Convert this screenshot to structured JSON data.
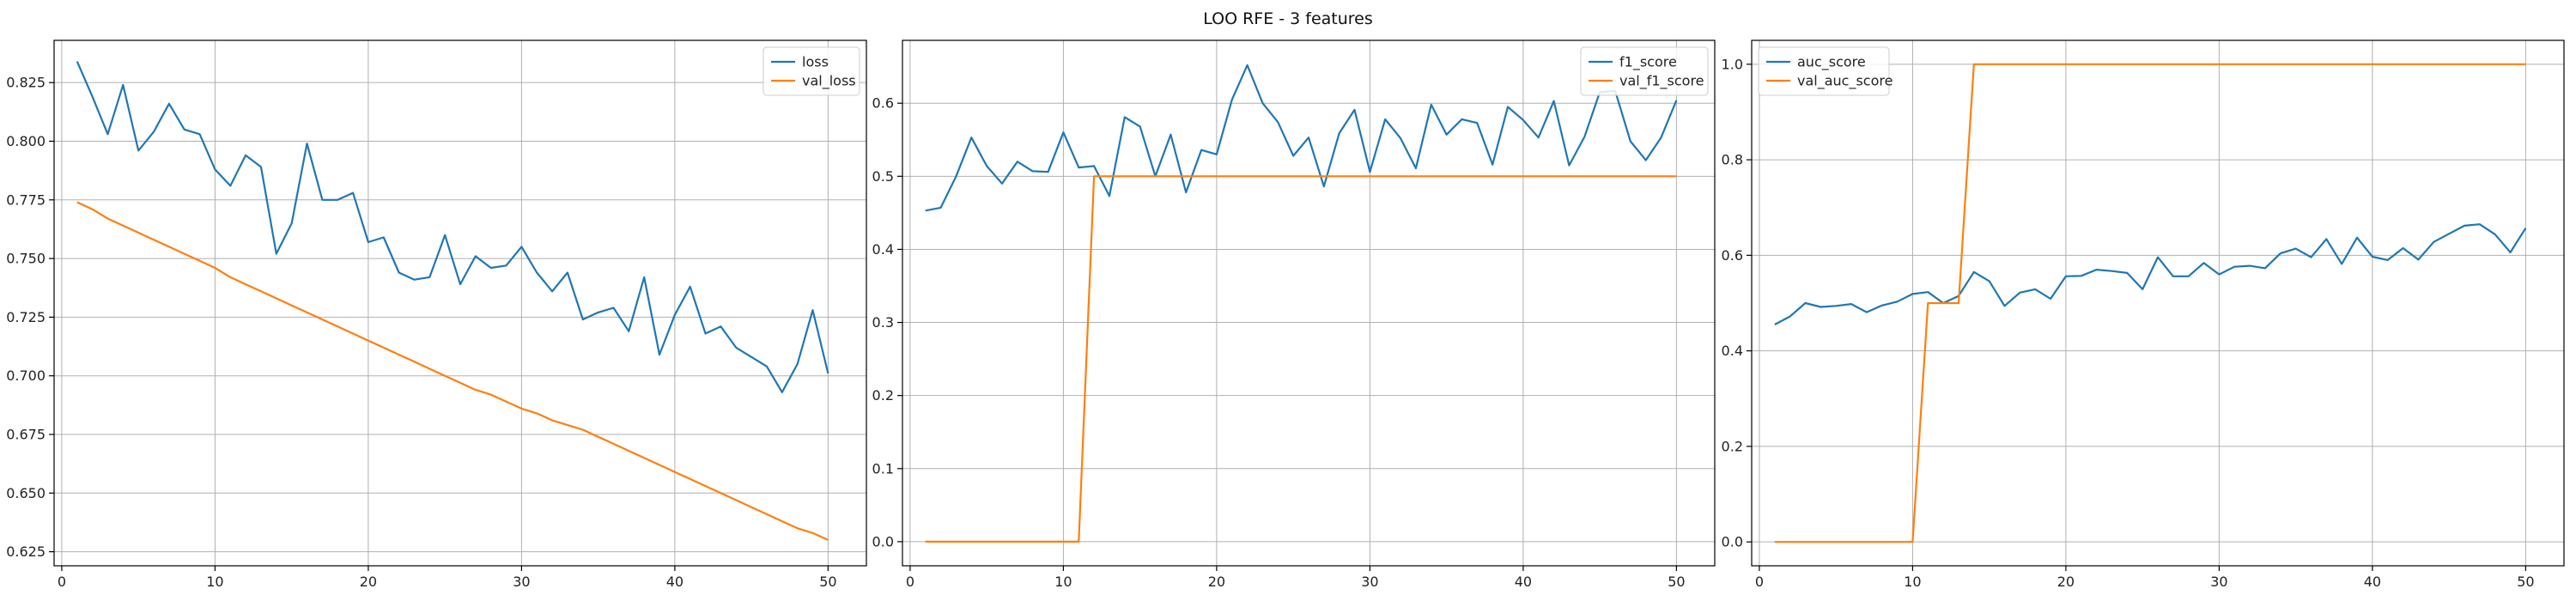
{
  "title": "LOO RFE - 3 features",
  "colors": {
    "series1": "#1f77b4",
    "series2": "#ff7f0e",
    "grid": "#b0b0b0",
    "axis": "#000000"
  },
  "chart_data": [
    {
      "type": "line",
      "grid": true,
      "legend_position": "top-right",
      "xlim": [
        -0.5,
        52.5
      ],
      "ylim": [
        0.619,
        0.843
      ],
      "xticks": [
        0,
        10,
        20,
        30,
        40,
        50
      ],
      "xtick_labels": [
        "0",
        "10",
        "20",
        "30",
        "40",
        "50"
      ],
      "yticks": [
        0.625,
        0.65,
        0.675,
        0.7,
        0.725,
        0.75,
        0.775,
        0.8,
        0.825
      ],
      "ytick_labels": [
        "0.625",
        "0.650",
        "0.675",
        "0.700",
        "0.725",
        "0.750",
        "0.775",
        "0.800",
        "0.825"
      ],
      "series": [
        {
          "name": "loss",
          "color": "#1f77b4",
          "x": [
            1,
            2,
            3,
            4,
            5,
            6,
            7,
            8,
            9,
            10,
            11,
            12,
            13,
            14,
            15,
            16,
            17,
            18,
            19,
            20,
            21,
            22,
            23,
            24,
            25,
            26,
            27,
            28,
            29,
            30,
            31,
            32,
            33,
            34,
            35,
            36,
            37,
            38,
            39,
            40,
            41,
            42,
            43,
            44,
            45,
            46,
            47,
            48,
            49,
            50
          ],
          "y": [
            0.834,
            0.819,
            0.803,
            0.824,
            0.796,
            0.804,
            0.816,
            0.805,
            0.803,
            0.788,
            0.781,
            0.794,
            0.789,
            0.752,
            0.765,
            0.799,
            0.775,
            0.775,
            0.778,
            0.757,
            0.759,
            0.744,
            0.741,
            0.742,
            0.76,
            0.739,
            0.751,
            0.746,
            0.747,
            0.755,
            0.744,
            0.736,
            0.744,
            0.724,
            0.727,
            0.729,
            0.719,
            0.742,
            0.709,
            0.726,
            0.738,
            0.718,
            0.721,
            0.712,
            0.708,
            0.704,
            0.693,
            0.705,
            0.728,
            0.701
          ]
        },
        {
          "name": "val_loss",
          "color": "#ff7f0e",
          "x": [
            1,
            2,
            3,
            4,
            5,
            6,
            7,
            8,
            9,
            10,
            11,
            12,
            13,
            14,
            15,
            16,
            17,
            18,
            19,
            20,
            21,
            22,
            23,
            24,
            25,
            26,
            27,
            28,
            29,
            30,
            31,
            32,
            33,
            34,
            35,
            36,
            37,
            38,
            39,
            40,
            41,
            42,
            43,
            44,
            45,
            46,
            47,
            48,
            49,
            50
          ],
          "y": [
            0.774,
            0.771,
            0.767,
            0.764,
            0.761,
            0.758,
            0.755,
            0.752,
            0.749,
            0.746,
            0.742,
            0.739,
            0.736,
            0.733,
            0.73,
            0.727,
            0.724,
            0.721,
            0.718,
            0.715,
            0.712,
            0.709,
            0.706,
            0.703,
            0.7,
            0.697,
            0.694,
            0.692,
            0.689,
            0.686,
            0.684,
            0.681,
            0.679,
            0.677,
            0.674,
            0.671,
            0.668,
            0.665,
            0.662,
            0.659,
            0.656,
            0.653,
            0.65,
            0.647,
            0.644,
            0.641,
            0.638,
            0.635,
            0.633,
            0.63
          ]
        }
      ]
    },
    {
      "type": "line",
      "grid": true,
      "legend_position": "top-right",
      "xlim": [
        -0.5,
        52.5
      ],
      "ylim": [
        -0.033,
        0.686
      ],
      "xticks": [
        0,
        10,
        20,
        30,
        40,
        50
      ],
      "xtick_labels": [
        "0",
        "10",
        "20",
        "30",
        "40",
        "50"
      ],
      "yticks": [
        0.0,
        0.1,
        0.2,
        0.3,
        0.4,
        0.5,
        0.6
      ],
      "ytick_labels": [
        "0.0",
        "0.1",
        "0.2",
        "0.3",
        "0.4",
        "0.5",
        "0.6"
      ],
      "series": [
        {
          "name": "f1_score",
          "color": "#1f77b4",
          "x": [
            1,
            2,
            3,
            4,
            5,
            6,
            7,
            8,
            9,
            10,
            11,
            12,
            13,
            14,
            15,
            16,
            17,
            18,
            19,
            20,
            21,
            22,
            23,
            24,
            25,
            26,
            27,
            28,
            29,
            30,
            31,
            32,
            33,
            34,
            35,
            36,
            37,
            38,
            39,
            40,
            41,
            42,
            43,
            44,
            45,
            46,
            47,
            48,
            49,
            50
          ],
          "y": [
            0.453,
            0.457,
            0.5,
            0.553,
            0.514,
            0.49,
            0.52,
            0.507,
            0.506,
            0.56,
            0.512,
            0.514,
            0.473,
            0.581,
            0.568,
            0.5,
            0.557,
            0.478,
            0.536,
            0.53,
            0.605,
            0.652,
            0.6,
            0.574,
            0.528,
            0.553,
            0.486,
            0.559,
            0.591,
            0.506,
            0.578,
            0.552,
            0.511,
            0.598,
            0.557,
            0.578,
            0.573,
            0.516,
            0.595,
            0.577,
            0.553,
            0.603,
            0.515,
            0.554,
            0.615,
            0.617,
            0.548,
            0.522,
            0.553,
            0.604
          ]
        },
        {
          "name": "val_f1_score",
          "color": "#ff7f0e",
          "x": [
            1,
            2,
            3,
            4,
            5,
            6,
            7,
            8,
            9,
            10,
            11,
            12,
            13,
            14,
            15,
            16,
            17,
            18,
            19,
            20,
            21,
            22,
            23,
            24,
            25,
            26,
            27,
            28,
            29,
            30,
            31,
            32,
            33,
            34,
            35,
            36,
            37,
            38,
            39,
            40,
            41,
            42,
            43,
            44,
            45,
            46,
            47,
            48,
            49,
            50
          ],
          "y": [
            0,
            0,
            0,
            0,
            0,
            0,
            0,
            0,
            0,
            0,
            0,
            0.5,
            0.5,
            0.5,
            0.5,
            0.5,
            0.5,
            0.5,
            0.5,
            0.5,
            0.5,
            0.5,
            0.5,
            0.5,
            0.5,
            0.5,
            0.5,
            0.5,
            0.5,
            0.5,
            0.5,
            0.5,
            0.5,
            0.5,
            0.5,
            0.5,
            0.5,
            0.5,
            0.5,
            0.5,
            0.5,
            0.5,
            0.5,
            0.5,
            0.5,
            0.5,
            0.5,
            0.5,
            0.5,
            0.5
          ]
        }
      ]
    },
    {
      "type": "line",
      "grid": true,
      "legend_position": "top-left",
      "xlim": [
        -0.5,
        52.5
      ],
      "ylim": [
        -0.05,
        1.05
      ],
      "xticks": [
        0,
        10,
        20,
        30,
        40,
        50
      ],
      "xtick_labels": [
        "0",
        "10",
        "20",
        "30",
        "40",
        "50"
      ],
      "yticks": [
        0.0,
        0.2,
        0.4,
        0.6,
        0.8,
        1.0
      ],
      "ytick_labels": [
        "0.0",
        "0.2",
        "0.4",
        "0.6",
        "0.8",
        "1.0"
      ],
      "series": [
        {
          "name": "auc_score",
          "color": "#1f77b4",
          "x": [
            1,
            2,
            3,
            4,
            5,
            6,
            7,
            8,
            9,
            10,
            11,
            12,
            13,
            14,
            15,
            16,
            17,
            18,
            19,
            20,
            21,
            22,
            23,
            24,
            25,
            26,
            27,
            28,
            29,
            30,
            31,
            32,
            33,
            34,
            35,
            36,
            37,
            38,
            39,
            40,
            41,
            42,
            43,
            44,
            45,
            46,
            47,
            48,
            49,
            50
          ],
          "y": [
            0.455,
            0.472,
            0.5,
            0.492,
            0.494,
            0.498,
            0.481,
            0.495,
            0.503,
            0.519,
            0.523,
            0.5,
            0.515,
            0.565,
            0.546,
            0.494,
            0.522,
            0.529,
            0.509,
            0.556,
            0.557,
            0.57,
            0.567,
            0.563,
            0.529,
            0.596,
            0.556,
            0.556,
            0.584,
            0.56,
            0.576,
            0.578,
            0.573,
            0.604,
            0.614,
            0.596,
            0.634,
            0.582,
            0.637,
            0.597,
            0.59,
            0.615,
            0.591,
            0.628,
            0.645,
            0.662,
            0.665,
            0.644,
            0.606,
            0.657
          ]
        },
        {
          "name": "val_auc_score",
          "color": "#ff7f0e",
          "x": [
            1,
            2,
            3,
            4,
            5,
            6,
            7,
            8,
            9,
            10,
            11,
            12,
            13,
            14,
            15,
            16,
            17,
            18,
            19,
            20,
            21,
            22,
            23,
            24,
            25,
            26,
            27,
            28,
            29,
            30,
            31,
            32,
            33,
            34,
            35,
            36,
            37,
            38,
            39,
            40,
            41,
            42,
            43,
            44,
            45,
            46,
            47,
            48,
            49,
            50
          ],
          "y": [
            0,
            0,
            0,
            0,
            0,
            0,
            0,
            0,
            0,
            0,
            0.5,
            0.5,
            0.5,
            1,
            1,
            1,
            1,
            1,
            1,
            1,
            1,
            1,
            1,
            1,
            1,
            1,
            1,
            1,
            1,
            1,
            1,
            1,
            1,
            1,
            1,
            1,
            1,
            1,
            1,
            1,
            1,
            1,
            1,
            1,
            1,
            1,
            1,
            1,
            1,
            1
          ]
        }
      ]
    }
  ]
}
